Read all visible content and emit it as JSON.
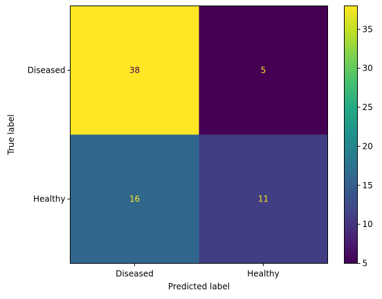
{
  "chart_data": {
    "type": "heatmap",
    "title": "",
    "xlabel": "Predicted label",
    "ylabel": "True label",
    "x_categories": [
      "Diseased",
      "Healthy"
    ],
    "y_categories": [
      "Diseased",
      "Healthy"
    ],
    "values": [
      [
        38,
        5
      ],
      [
        16,
        11
      ]
    ],
    "colormap": "viridis",
    "colorbar": {
      "range": [
        5,
        38
      ],
      "ticks": [
        5,
        10,
        15,
        20,
        25,
        30,
        35
      ]
    },
    "annotation_colors": {
      "on_dark": "#fde725",
      "on_light": "#440154"
    }
  }
}
